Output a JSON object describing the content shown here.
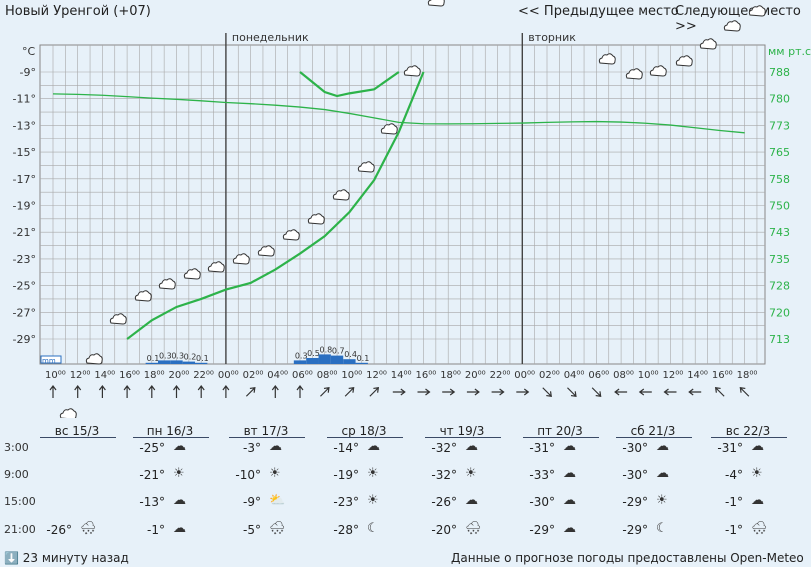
{
  "header": {
    "location": "Новый Уренгой (+07)",
    "prev": "<< Предыдущее место",
    "next": "Следующее место >>"
  },
  "chart_data": {
    "type": "line",
    "day_labels": [
      "понедельник",
      "вторник"
    ],
    "left_unit": "°C",
    "right_unit": "мм рт.ст",
    "left_ticks": [
      "-9°",
      "-11°",
      "-13°",
      "-15°",
      "-17°",
      "-19°",
      "-21°",
      "-23°",
      "-25°",
      "-27°",
      "-29°"
    ],
    "right_ticks": [
      "788",
      "780",
      "773",
      "765",
      "758",
      "750",
      "743",
      "735",
      "728",
      "720",
      "713"
    ],
    "x_labels": [
      "10⁰⁰",
      "12⁰⁰",
      "14⁰⁰",
      "16⁰⁰",
      "18⁰⁰",
      "20⁰⁰",
      "22⁰⁰",
      "00⁰⁰",
      "02⁰⁰",
      "04⁰⁰",
      "06⁰⁰",
      "08⁰⁰",
      "10⁰⁰",
      "12⁰⁰",
      "14⁰⁰",
      "16⁰⁰",
      "18⁰⁰",
      "20⁰⁰",
      "22⁰⁰",
      "00⁰⁰",
      "02⁰⁰",
      "04⁰⁰",
      "06⁰⁰",
      "08⁰⁰",
      "10⁰⁰",
      "12⁰⁰",
      "14⁰⁰",
      "16⁰⁰",
      "18⁰⁰"
    ],
    "series": [
      {
        "kind": "temperature",
        "color": "#2db34a",
        "segments": [
          [
            [
              16,
              -29.0
            ],
            [
              18,
              -27.6
            ],
            [
              20,
              -26.6
            ],
            [
              22,
              -26.0
            ],
            [
              0,
              -25.3
            ],
            [
              2,
              -24.8
            ],
            [
              4,
              -23.8
            ],
            [
              6,
              -22.6
            ],
            [
              8,
              -21.3
            ],
            [
              10,
              -19.5
            ],
            [
              12,
              -17.1
            ],
            [
              14,
              -13.5
            ],
            [
              16,
              -9.0
            ]
          ],
          [
            [
              6,
              -9.0
            ],
            [
              8,
              -10.5
            ],
            [
              9,
              -10.8
            ],
            [
              10,
              -10.6
            ],
            [
              12,
              -10.3
            ],
            [
              14,
              -9.0
            ]
          ]
        ]
      },
      {
        "kind": "pressure",
        "color": "#2db34a",
        "values_mmhg": [
          775.0,
          774.7,
          774.2,
          773.4,
          772.5,
          771.8,
          770.9,
          769.9,
          769.2,
          768.3,
          767.2,
          765.7,
          763.4,
          760.8,
          758.1,
          757.3,
          757.2,
          757.3,
          757.5,
          757.7,
          758.1,
          758.4,
          758.6,
          758.3,
          757.6,
          756.5,
          754.9,
          753.3,
          751.9
        ]
      }
    ],
    "precipitation": {
      "unit": "mm",
      "label": "0.1",
      "bars": [
        {
          "time": "18⁰⁰",
          "label": "0.1",
          "value": 0.1
        },
        {
          "time": "19⁰⁰",
          "label": "0.3",
          "value": 0.3
        },
        {
          "time": "20⁰⁰",
          "label": "0.3",
          "value": 0.3
        },
        {
          "time": "21⁰⁰",
          "label": "0.2",
          "value": 0.2
        },
        {
          "time": "22⁰⁰",
          "label": "0.1",
          "value": 0.1
        },
        {
          "time": "06⁰⁰",
          "label": "0.3",
          "value": 0.3
        },
        {
          "time": "07⁰⁰",
          "label": "0.5",
          "value": 0.5
        },
        {
          "time": "08⁰⁰",
          "label": "0.8",
          "value": 0.8
        },
        {
          "time": "09⁰⁰",
          "label": "0.7",
          "value": 0.7
        },
        {
          "time": "10⁰⁰",
          "label": "0.4",
          "value": 0.4
        },
        {
          "time": "11⁰⁰",
          "label": "0.1",
          "value": 0.1
        }
      ]
    },
    "wind_directions": [
      "N",
      "N",
      "N",
      "N",
      "N",
      "N",
      "N",
      "N",
      "NE",
      "N",
      "N",
      "NE",
      "NE",
      "NE",
      "E",
      "E",
      "E",
      "E",
      "E",
      "E",
      "SE",
      "SE",
      "SE",
      "W",
      "W",
      "W",
      "W",
      "NW",
      "NW"
    ],
    "grid": true
  },
  "forecast": {
    "time_labels": [
      "3:00",
      "9:00",
      "15:00",
      "21:00"
    ],
    "days": [
      {
        "label": "вс 15/3",
        "cells": [
          null,
          null,
          null,
          {
            "t": "-26°",
            "icon": "cloud-snow-icon"
          }
        ]
      },
      {
        "label": "пн 16/3",
        "cells": [
          {
            "t": "-25°",
            "icon": "cloud-icon"
          },
          {
            "t": "-21°",
            "icon": "sun-icon"
          },
          {
            "t": "-13°",
            "icon": "cloud-icon"
          },
          {
            "t": "-1°",
            "icon": "cloud-icon"
          }
        ]
      },
      {
        "label": "вт 17/3",
        "cells": [
          {
            "t": "-3°",
            "icon": "cloud-icon"
          },
          {
            "t": "-10°",
            "icon": "sun-icon"
          },
          {
            "t": "-9°",
            "icon": "sun-cloud-icon"
          },
          {
            "t": "-5°",
            "icon": "cloud-snow-icon"
          }
        ]
      },
      {
        "label": "ср 18/3",
        "cells": [
          {
            "t": "-14°",
            "icon": "cloud-icon"
          },
          {
            "t": "-19°",
            "icon": "sun-icon"
          },
          {
            "t": "-23°",
            "icon": "sun-icon"
          },
          {
            "t": "-28°",
            "icon": "moon-icon"
          }
        ]
      },
      {
        "label": "чт 19/3",
        "cells": [
          {
            "t": "-32°",
            "icon": "cloud-icon"
          },
          {
            "t": "-32°",
            "icon": "sun-icon"
          },
          {
            "t": "-26°",
            "icon": "cloud-icon"
          },
          {
            "t": "-20°",
            "icon": "cloud-snow-icon"
          }
        ]
      },
      {
        "label": "пт 20/3",
        "cells": [
          {
            "t": "-31°",
            "icon": "cloud-icon"
          },
          {
            "t": "-33°",
            "icon": "cloud-icon"
          },
          {
            "t": "-30°",
            "icon": "cloud-icon"
          },
          {
            "t": "-29°",
            "icon": "cloud-icon"
          }
        ]
      },
      {
        "label": "сб 21/3",
        "cells": [
          {
            "t": "-30°",
            "icon": "cloud-icon"
          },
          {
            "t": "-30°",
            "icon": "cloud-icon"
          },
          {
            "t": "-29°",
            "icon": "sun-icon"
          },
          {
            "t": "-29°",
            "icon": "moon-icon"
          }
        ]
      },
      {
        "label": "вс 22/3",
        "cells": [
          {
            "t": "-31°",
            "icon": "cloud-icon"
          },
          {
            "t": "-4°",
            "icon": "sun-icon"
          },
          {
            "t": "-1°",
            "icon": "cloud-icon"
          },
          {
            "t": "-1°",
            "icon": "cloud-snow-icon"
          }
        ]
      }
    ]
  },
  "footer": {
    "updated": "⬇️ 23 минуту назад",
    "source": "Данные о прогнозе погоды предоставлены Open-Meteo"
  }
}
